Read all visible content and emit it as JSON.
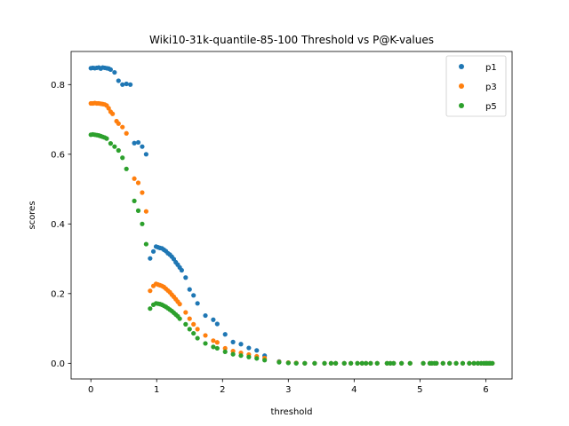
{
  "chart_data": {
    "type": "scatter",
    "title": "Wiki10-31k-quantile-85-100 Threshold vs P@K-values",
    "xlabel": "threshold",
    "ylabel": "scores",
    "xlim": [
      -0.3,
      6.4
    ],
    "ylim": [
      -0.045,
      0.895
    ],
    "x_ticks": [
      0,
      1,
      2,
      3,
      4,
      5,
      6
    ],
    "x_tick_labels": [
      "0",
      "1",
      "2",
      "3",
      "4",
      "5",
      "6"
    ],
    "y_ticks": [
      0.0,
      0.2,
      0.4,
      0.6,
      0.8
    ],
    "y_tick_labels": [
      "0.0",
      "0.2",
      "0.4",
      "0.6",
      "0.8"
    ],
    "grid": false,
    "legend_position": "top-right",
    "series": [
      {
        "name": "p1",
        "color": "#1f77b4",
        "points": [
          [
            0.0,
            0.847
          ],
          [
            0.03,
            0.848
          ],
          [
            0.06,
            0.847
          ],
          [
            0.09,
            0.848
          ],
          [
            0.12,
            0.849
          ],
          [
            0.15,
            0.846
          ],
          [
            0.18,
            0.849
          ],
          [
            0.21,
            0.848
          ],
          [
            0.24,
            0.847
          ],
          [
            0.27,
            0.846
          ],
          [
            0.3,
            0.843
          ],
          [
            0.36,
            0.835
          ],
          [
            0.42,
            0.811
          ],
          [
            0.48,
            0.8
          ],
          [
            0.54,
            0.802
          ],
          [
            0.6,
            0.8
          ],
          [
            0.66,
            0.632
          ],
          [
            0.72,
            0.634
          ],
          [
            0.78,
            0.622
          ],
          [
            0.84,
            0.6
          ],
          [
            0.9,
            0.301
          ],
          [
            0.95,
            0.321
          ],
          [
            0.99,
            0.335
          ],
          [
            1.02,
            0.333
          ],
          [
            1.05,
            0.331
          ],
          [
            1.08,
            0.33
          ],
          [
            1.11,
            0.326
          ],
          [
            1.14,
            0.322
          ],
          [
            1.17,
            0.316
          ],
          [
            1.2,
            0.312
          ],
          [
            1.23,
            0.306
          ],
          [
            1.26,
            0.299
          ],
          [
            1.29,
            0.29
          ],
          [
            1.32,
            0.283
          ],
          [
            1.35,
            0.275
          ],
          [
            1.38,
            0.267
          ],
          [
            1.44,
            0.246
          ],
          [
            1.5,
            0.212
          ],
          [
            1.56,
            0.195
          ],
          [
            1.62,
            0.172
          ],
          [
            1.74,
            0.137
          ],
          [
            1.86,
            0.125
          ],
          [
            1.92,
            0.113
          ],
          [
            2.04,
            0.083
          ],
          [
            2.16,
            0.061
          ],
          [
            2.28,
            0.055
          ],
          [
            2.4,
            0.044
          ],
          [
            2.52,
            0.037
          ],
          [
            2.64,
            0.022
          ],
          [
            2.86,
            0.005
          ],
          [
            3.0,
            0.002
          ],
          [
            3.12,
            0.001
          ],
          [
            3.25,
            0.0
          ],
          [
            3.4,
            0.0
          ],
          [
            3.55,
            0.0
          ],
          [
            3.65,
            0.0
          ],
          [
            3.72,
            0.0
          ],
          [
            3.85,
            0.0
          ],
          [
            3.95,
            0.0
          ],
          [
            4.05,
            0.0
          ],
          [
            4.12,
            0.0
          ],
          [
            4.18,
            0.0
          ],
          [
            4.25,
            0.0
          ],
          [
            4.35,
            0.0
          ],
          [
            4.5,
            0.0
          ],
          [
            4.55,
            0.0
          ],
          [
            4.6,
            0.0
          ],
          [
            4.72,
            0.0
          ],
          [
            4.85,
            0.0
          ],
          [
            5.05,
            0.0
          ],
          [
            5.15,
            0.0
          ],
          [
            5.18,
            0.0
          ],
          [
            5.22,
            0.0
          ],
          [
            5.25,
            0.0
          ],
          [
            5.35,
            0.0
          ],
          [
            5.45,
            0.0
          ],
          [
            5.55,
            0.0
          ],
          [
            5.65,
            0.0
          ],
          [
            5.75,
            0.0
          ],
          [
            5.82,
            0.0
          ],
          [
            5.88,
            0.0
          ],
          [
            5.93,
            0.0
          ],
          [
            5.97,
            0.0
          ],
          [
            6.0,
            0.0
          ],
          [
            6.02,
            0.0
          ],
          [
            6.05,
            0.0
          ],
          [
            6.07,
            0.0
          ],
          [
            6.1,
            0.0
          ]
        ]
      },
      {
        "name": "p3",
        "color": "#ff7f0e",
        "points": [
          [
            0.0,
            0.746
          ],
          [
            0.03,
            0.746
          ],
          [
            0.06,
            0.747
          ],
          [
            0.09,
            0.746
          ],
          [
            0.12,
            0.746
          ],
          [
            0.15,
            0.745
          ],
          [
            0.18,
            0.744
          ],
          [
            0.21,
            0.743
          ],
          [
            0.24,
            0.74
          ],
          [
            0.27,
            0.732
          ],
          [
            0.3,
            0.722
          ],
          [
            0.33,
            0.716
          ],
          [
            0.39,
            0.695
          ],
          [
            0.42,
            0.688
          ],
          [
            0.48,
            0.678
          ],
          [
            0.54,
            0.66
          ],
          [
            0.66,
            0.53
          ],
          [
            0.72,
            0.518
          ],
          [
            0.78,
            0.49
          ],
          [
            0.84,
            0.436
          ],
          [
            0.9,
            0.208
          ],
          [
            0.95,
            0.222
          ],
          [
            0.99,
            0.228
          ],
          [
            1.02,
            0.226
          ],
          [
            1.05,
            0.224
          ],
          [
            1.08,
            0.222
          ],
          [
            1.11,
            0.219
          ],
          [
            1.14,
            0.214
          ],
          [
            1.17,
            0.209
          ],
          [
            1.2,
            0.204
          ],
          [
            1.23,
            0.197
          ],
          [
            1.26,
            0.191
          ],
          [
            1.29,
            0.184
          ],
          [
            1.32,
            0.177
          ],
          [
            1.35,
            0.17
          ],
          [
            1.44,
            0.146
          ],
          [
            1.5,
            0.128
          ],
          [
            1.56,
            0.112
          ],
          [
            1.62,
            0.098
          ],
          [
            1.74,
            0.08
          ],
          [
            1.86,
            0.065
          ],
          [
            1.92,
            0.06
          ],
          [
            2.04,
            0.043
          ],
          [
            2.16,
            0.035
          ],
          [
            2.28,
            0.03
          ],
          [
            2.4,
            0.025
          ],
          [
            2.52,
            0.02
          ],
          [
            2.64,
            0.015
          ],
          [
            2.86,
            0.004
          ],
          [
            3.0,
            0.002
          ],
          [
            3.12,
            0.001
          ],
          [
            3.25,
            0.0
          ],
          [
            3.4,
            0.0
          ],
          [
            3.55,
            0.0
          ],
          [
            3.65,
            0.0
          ],
          [
            3.72,
            0.0
          ],
          [
            3.85,
            0.0
          ],
          [
            3.95,
            0.0
          ],
          [
            4.05,
            0.0
          ],
          [
            4.12,
            0.0
          ],
          [
            4.18,
            0.0
          ],
          [
            4.25,
            0.0
          ],
          [
            4.35,
            0.0
          ],
          [
            4.5,
            0.0
          ],
          [
            4.55,
            0.0
          ],
          [
            4.6,
            0.0
          ],
          [
            4.72,
            0.0
          ],
          [
            4.85,
            0.0
          ],
          [
            5.05,
            0.0
          ],
          [
            5.15,
            0.0
          ],
          [
            5.18,
            0.0
          ],
          [
            5.22,
            0.0
          ],
          [
            5.25,
            0.0
          ],
          [
            5.35,
            0.0
          ],
          [
            5.45,
            0.0
          ],
          [
            5.55,
            0.0
          ],
          [
            5.65,
            0.0
          ],
          [
            5.75,
            0.0
          ],
          [
            5.82,
            0.0
          ],
          [
            5.88,
            0.0
          ],
          [
            5.93,
            0.0
          ],
          [
            5.97,
            0.0
          ],
          [
            6.0,
            0.0
          ],
          [
            6.02,
            0.0
          ],
          [
            6.05,
            0.0
          ],
          [
            6.07,
            0.0
          ],
          [
            6.1,
            0.0
          ]
        ]
      },
      {
        "name": "p5",
        "color": "#2ca02c",
        "points": [
          [
            0.0,
            0.656
          ],
          [
            0.03,
            0.657
          ],
          [
            0.06,
            0.656
          ],
          [
            0.09,
            0.655
          ],
          [
            0.12,
            0.654
          ],
          [
            0.15,
            0.652
          ],
          [
            0.18,
            0.65
          ],
          [
            0.21,
            0.648
          ],
          [
            0.24,
            0.645
          ],
          [
            0.3,
            0.631
          ],
          [
            0.36,
            0.622
          ],
          [
            0.42,
            0.611
          ],
          [
            0.48,
            0.59
          ],
          [
            0.54,
            0.558
          ],
          [
            0.66,
            0.466
          ],
          [
            0.72,
            0.438
          ],
          [
            0.78,
            0.4
          ],
          [
            0.84,
            0.342
          ],
          [
            0.9,
            0.157
          ],
          [
            0.95,
            0.168
          ],
          [
            0.99,
            0.172
          ],
          [
            1.02,
            0.171
          ],
          [
            1.05,
            0.17
          ],
          [
            1.08,
            0.168
          ],
          [
            1.11,
            0.165
          ],
          [
            1.14,
            0.162
          ],
          [
            1.17,
            0.158
          ],
          [
            1.2,
            0.154
          ],
          [
            1.23,
            0.15
          ],
          [
            1.26,
            0.145
          ],
          [
            1.29,
            0.14
          ],
          [
            1.32,
            0.135
          ],
          [
            1.35,
            0.128
          ],
          [
            1.44,
            0.112
          ],
          [
            1.5,
            0.098
          ],
          [
            1.56,
            0.086
          ],
          [
            1.62,
            0.072
          ],
          [
            1.74,
            0.057
          ],
          [
            1.86,
            0.047
          ],
          [
            1.92,
            0.043
          ],
          [
            2.04,
            0.033
          ],
          [
            2.16,
            0.026
          ],
          [
            2.28,
            0.022
          ],
          [
            2.4,
            0.018
          ],
          [
            2.52,
            0.014
          ],
          [
            2.64,
            0.009
          ],
          [
            2.86,
            0.003
          ],
          [
            3.0,
            0.001
          ],
          [
            3.12,
            0.0
          ],
          [
            3.25,
            0.0
          ],
          [
            3.4,
            0.0
          ],
          [
            3.55,
            0.0
          ],
          [
            3.65,
            0.0
          ],
          [
            3.72,
            0.0
          ],
          [
            3.85,
            0.0
          ],
          [
            3.95,
            0.0
          ],
          [
            4.05,
            0.0
          ],
          [
            4.12,
            0.0
          ],
          [
            4.18,
            0.0
          ],
          [
            4.25,
            0.0
          ],
          [
            4.35,
            0.0
          ],
          [
            4.5,
            0.0
          ],
          [
            4.55,
            0.0
          ],
          [
            4.6,
            0.0
          ],
          [
            4.72,
            0.0
          ],
          [
            4.85,
            0.0
          ],
          [
            5.05,
            0.0
          ],
          [
            5.15,
            0.0
          ],
          [
            5.18,
            0.0
          ],
          [
            5.22,
            0.0
          ],
          [
            5.25,
            0.0
          ],
          [
            5.35,
            0.0
          ],
          [
            5.45,
            0.0
          ],
          [
            5.55,
            0.0
          ],
          [
            5.65,
            0.0
          ],
          [
            5.75,
            0.0
          ],
          [
            5.82,
            0.0
          ],
          [
            5.88,
            0.0
          ],
          [
            5.93,
            0.0
          ],
          [
            5.97,
            0.0
          ],
          [
            6.0,
            0.0
          ],
          [
            6.02,
            0.0
          ],
          [
            6.05,
            0.0
          ],
          [
            6.07,
            0.0
          ],
          [
            6.1,
            0.0
          ]
        ]
      }
    ]
  }
}
